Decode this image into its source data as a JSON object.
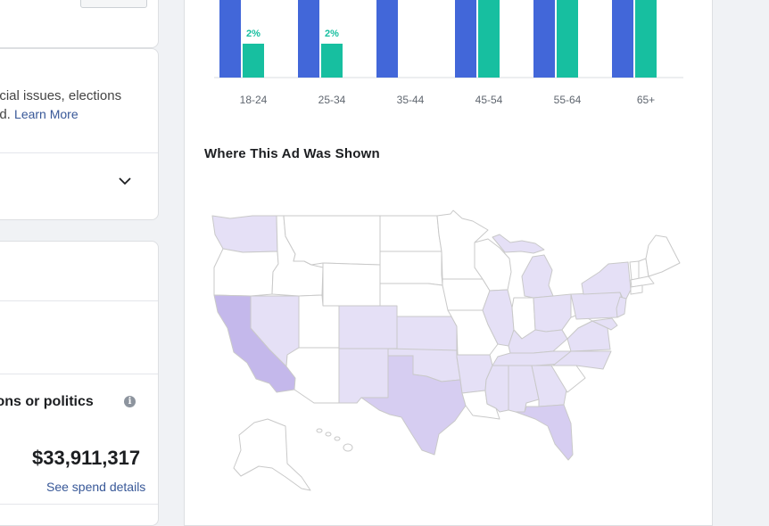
{
  "sidebar": {
    "desc_line1": "ocial issues, elections",
    "desc_line2": "ad.",
    "learn_more": "Learn More",
    "politics_label": "ions or politics",
    "info_icon": "i",
    "spend_total": "$33,911,317",
    "spend_link": "See spend details"
  },
  "icons": {
    "chevron": "chevron-down-icon",
    "info": "info-icon"
  },
  "colors": {
    "blue": "#4267d9",
    "teal": "#17bfa0",
    "link": "#385898"
  },
  "chart_data": {
    "type": "bar",
    "categories": [
      "18-24",
      "25-34",
      "35-44",
      "45-54",
      "55-64",
      "65+"
    ],
    "series": [
      {
        "values": [
          null,
          null,
          null,
          null,
          null,
          null
        ]
      },
      {
        "values": [
          2,
          2,
          0,
          null,
          null,
          null
        ]
      }
    ],
    "data_labels": [
      "2%",
      "2%",
      "",
      "",
      "",
      ""
    ]
  },
  "map": {
    "title": "Where This Ad Was Shown",
    "shading": {
      "darkest": [
        "CA"
      ],
      "medium": [
        "TX",
        "FL"
      ],
      "light": [
        "WA",
        "NV",
        "CO",
        "NM",
        "KS",
        "OK",
        "AR",
        "IL",
        "MI",
        "OH",
        "PA",
        "NY",
        "KY",
        "TN",
        "GA",
        "AL",
        "MS",
        "VA",
        "NC",
        "NJ",
        "MD"
      ],
      "none": [
        "OR",
        "ID",
        "MT",
        "WY",
        "UT",
        "AZ",
        "ND",
        "SD",
        "NE",
        "MN",
        "IA",
        "MO",
        "LA",
        "WI",
        "IN",
        "WV",
        "SC",
        "ME",
        "VT",
        "NH",
        "MA",
        "CT",
        "AK",
        "HI"
      ]
    }
  }
}
